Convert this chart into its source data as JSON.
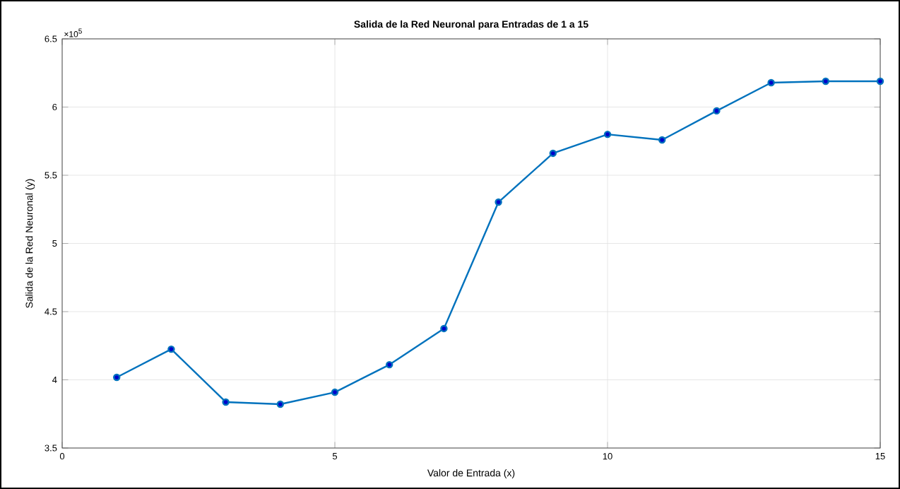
{
  "chart_data": {
    "type": "line",
    "title": "Salida de la Red Neuronal para Entradas de 1 a 15",
    "xlabel": "Valor de Entrada (x)",
    "ylabel": "Salida de la Red Neuronal (y)",
    "x": [
      1,
      2,
      3,
      4,
      5,
      6,
      7,
      8,
      9,
      10,
      11,
      12,
      13,
      14,
      15
    ],
    "series": [
      {
        "color": "#0072bd",
        "values": [
          4.018,
          4.225,
          3.837,
          3.821,
          3.909,
          4.111,
          4.376,
          5.303,
          5.661,
          5.8,
          5.759,
          5.972,
          6.179,
          6.189,
          6.189
        ]
      }
    ],
    "xlim": [
      0,
      15
    ],
    "xticks": [
      0,
      5,
      10,
      15
    ],
    "ylim": [
      3.5,
      6.5
    ],
    "yticks": [
      3.5,
      4,
      4.5,
      5,
      5.5,
      6,
      6.5
    ],
    "annotations": [
      "×10$^{5}$"
    ],
    "grid": true,
    "marker": "circle",
    "line_style": "solid"
  }
}
